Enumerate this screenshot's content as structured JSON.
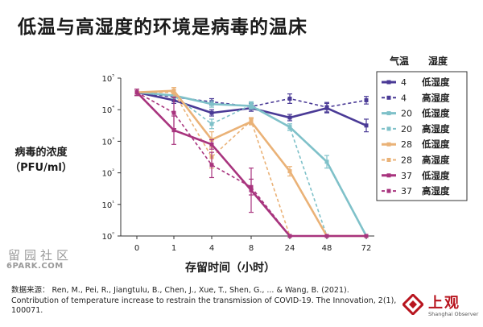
{
  "title": "低温与高湿度的环境是病毒的温床",
  "y_axis_label_line1": "病毒的浓度",
  "y_axis_label_line2": "（PFU/ml）",
  "x_axis_label": "存留时间（小时）",
  "watermark_line1": "留园社区",
  "watermark_line2": "6PARK.COM",
  "source_text": "数据来源： Ren, M., Pei, R., Jiangtulu, B., Chen, J., Xue, T., Shen, G., ... & Wang, B. (2021). Contribution of temperature increase to restrain the transmission of COVID-19. The Innovation, 2(1), 100071.",
  "logo_text": "上观",
  "logo_subtext": "Shanghai Observer",
  "logo_color": "#b8151f",
  "chart_data": {
    "type": "line",
    "x_scale": "categorical",
    "categories": [
      "0",
      "1",
      "4",
      "8",
      "24",
      "48",
      "72"
    ],
    "y_scale": "log",
    "y_ticks": [
      {
        "value": 0,
        "label": "10⁰"
      },
      {
        "value": 1,
        "label": "10¹"
      },
      {
        "value": 2,
        "label": "10²"
      },
      {
        "value": 3,
        "label": "10³"
      },
      {
        "value": 4,
        "label": "10⁴"
      },
      {
        "value": 5,
        "label": "10⁵"
      }
    ],
    "ylim_log10": [
      0,
      5
    ],
    "grid": false,
    "legend_position": "right",
    "legend_header": {
      "temp": "气温",
      "humidity": "湿度"
    },
    "series": [
      {
        "temp": "4",
        "humidity": "低湿度",
        "color": "#4a3a96",
        "dashed": false,
        "log10_values": [
          4.55,
          4.3,
          3.9,
          4.05,
          3.75,
          4.05,
          3.5
        ],
        "log10_errors": [
          0.1,
          0.1,
          0.1,
          0.1,
          0.1,
          0.15,
          0.2
        ]
      },
      {
        "temp": "4",
        "humidity": "高湿度",
        "color": "#4a3a96",
        "dashed": true,
        "log10_values": [
          4.55,
          4.4,
          4.25,
          4.1,
          4.35,
          4.08,
          4.3
        ],
        "log10_errors": [
          0.1,
          0.1,
          0.1,
          0.1,
          0.15,
          0.15,
          0.12
        ]
      },
      {
        "temp": "20",
        "humidity": "低湿度",
        "color": "#7fc1c9",
        "dashed": false,
        "log10_values": [
          4.55,
          4.45,
          4.18,
          4.12,
          3.45,
          2.35,
          0
        ],
        "log10_errors": [
          0.1,
          0.1,
          0.1,
          0.1,
          0.1,
          0.2,
          0
        ]
      },
      {
        "temp": "20",
        "humidity": "高湿度",
        "color": "#7fc1c9",
        "dashed": true,
        "log10_values": [
          4.55,
          4.45,
          3.55,
          4.15,
          3.45,
          0,
          0
        ],
        "log10_errors": [
          0.1,
          0.1,
          0.15,
          0.1,
          0.1,
          0,
          0
        ]
      },
      {
        "temp": "28",
        "humidity": "低湿度",
        "color": "#eab277",
        "dashed": false,
        "log10_values": [
          4.55,
          4.6,
          3.05,
          3.62,
          2.05,
          0,
          0
        ],
        "log10_errors": [
          0.1,
          0.1,
          0.25,
          0.1,
          0.15,
          0,
          0
        ]
      },
      {
        "temp": "28",
        "humidity": "高湿度",
        "color": "#eab277",
        "dashed": true,
        "log10_values": [
          4.55,
          4.55,
          2.5,
          3.65,
          0,
          0,
          0
        ],
        "log10_errors": [
          0.1,
          0.15,
          0.35,
          0.1,
          0,
          0,
          0
        ]
      },
      {
        "temp": "37",
        "humidity": "低湿度",
        "color": "#a8347e",
        "dashed": false,
        "log10_values": [
          4.55,
          3.35,
          2.9,
          1.45,
          0,
          0,
          0
        ],
        "log10_errors": [
          0.1,
          0.45,
          0.15,
          0.7,
          0,
          0,
          0
        ]
      },
      {
        "temp": "37",
        "humidity": "高湿度",
        "color": "#a8347e",
        "dashed": true,
        "log10_values": [
          4.55,
          3.9,
          2.25,
          1.55,
          0,
          0,
          0
        ],
        "log10_errors": [
          0.1,
          0.5,
          0.4,
          0.25,
          0,
          0,
          0
        ]
      }
    ]
  }
}
